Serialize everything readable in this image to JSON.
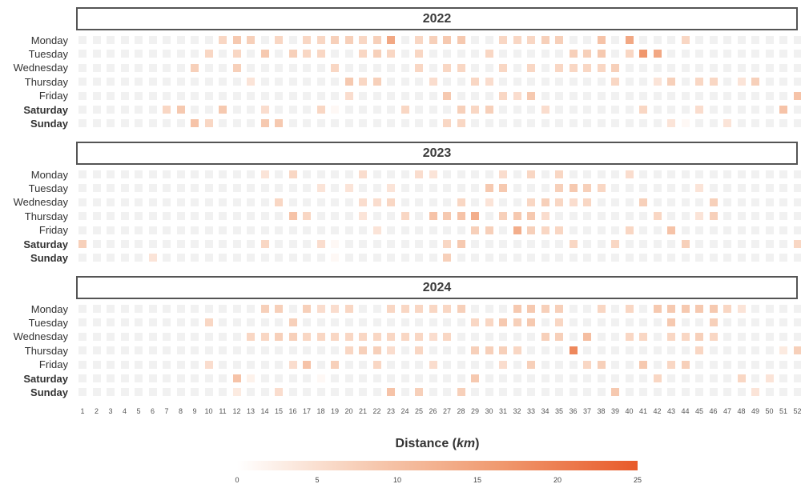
{
  "chart_data": {
    "type": "heatmap",
    "title": "",
    "x_axis": {
      "label": "",
      "ticks": [
        1,
        2,
        3,
        4,
        5,
        6,
        7,
        8,
        9,
        10,
        11,
        12,
        13,
        14,
        15,
        16,
        17,
        18,
        19,
        20,
        21,
        22,
        23,
        24,
        25,
        26,
        27,
        28,
        29,
        30,
        31,
        32,
        33,
        34,
        35,
        36,
        37,
        38,
        39,
        40,
        41,
        42,
        43,
        44,
        45,
        46,
        47,
        48,
        49,
        50,
        51,
        52
      ]
    },
    "y_axis": {
      "label": "",
      "ticks": [
        "Monday",
        "Tuesday",
        "Wednesday",
        "Thursday",
        "Friday",
        "Saturday",
        "Sunday"
      ],
      "bold_ticks": [
        "Saturday",
        "Sunday"
      ]
    },
    "facets": [
      {
        "year": "2022",
        "values": {
          "Monday": [
            0,
            0,
            0,
            0,
            0,
            0,
            0,
            0,
            0,
            0,
            6,
            8,
            7,
            0,
            6,
            0,
            6,
            6,
            7,
            7,
            6,
            7,
            14,
            0,
            6,
            7,
            8,
            8,
            0,
            0,
            6,
            6,
            6,
            7,
            7,
            0,
            0,
            9,
            0,
            14,
            0,
            0,
            0,
            6,
            0,
            0,
            0,
            0,
            0,
            0,
            0,
            0
          ],
          "Tuesday": [
            0,
            0,
            0,
            0,
            0,
            0,
            0,
            0,
            0,
            6,
            0,
            6,
            0,
            8,
            0,
            7,
            6,
            6,
            0,
            0,
            6,
            7,
            6,
            0,
            6,
            0,
            0,
            0,
            0,
            6,
            0,
            0,
            0,
            0,
            0,
            7,
            7,
            8,
            0,
            6,
            17,
            14,
            0,
            0,
            0,
            0,
            0,
            0,
            0,
            0,
            0,
            0
          ],
          "Wednesday": [
            0,
            0,
            0,
            0,
            0,
            0,
            0,
            0,
            7,
            0,
            0,
            7,
            0,
            0,
            0,
            0,
            0,
            0,
            6,
            0,
            0,
            0,
            0,
            0,
            6,
            0,
            6,
            6,
            0,
            0,
            6,
            0,
            6,
            0,
            6,
            6,
            6,
            6,
            7,
            0,
            0,
            0,
            0,
            0,
            0,
            0,
            0,
            0,
            0,
            0,
            0,
            0
          ],
          "Thursday": [
            0,
            0,
            0,
            0,
            0,
            0,
            0,
            0,
            0,
            0,
            0,
            0,
            4,
            0,
            0,
            0,
            0,
            0,
            0,
            8,
            6,
            7,
            0,
            0,
            0,
            5,
            0,
            0,
            6,
            5,
            0,
            0,
            0,
            0,
            0,
            0,
            0,
            0,
            6,
            0,
            0,
            4,
            7,
            0,
            6,
            6,
            0,
            4,
            7,
            0,
            0,
            0
          ],
          "Friday": [
            0,
            0,
            0,
            0,
            0,
            0,
            0,
            0,
            0,
            0,
            0,
            0,
            0,
            0,
            0,
            0,
            0,
            0,
            0,
            5,
            0,
            0,
            0,
            0,
            0,
            0,
            8,
            0,
            0,
            0,
            6,
            5,
            8,
            0,
            0,
            0,
            0,
            0,
            0,
            0,
            0,
            0,
            0,
            0,
            0,
            0,
            0,
            0,
            0,
            0,
            0,
            9
          ],
          "Saturday": [
            0,
            0,
            0,
            0,
            0,
            0,
            6,
            8,
            0,
            0,
            8,
            0,
            0,
            5,
            0,
            0,
            0,
            6,
            1,
            0,
            0,
            0,
            0,
            6,
            0,
            0,
            0,
            7,
            6,
            7,
            0,
            0,
            0,
            5,
            0,
            0,
            0,
            0,
            0,
            0,
            6,
            0,
            0,
            0,
            5,
            0,
            0,
            0,
            0,
            0,
            9,
            0
          ],
          "Sunday": [
            0,
            0,
            0,
            0,
            0,
            0,
            0,
            0,
            9,
            6,
            0,
            0,
            0,
            8,
            8,
            0,
            0,
            0,
            0,
            0,
            0,
            0,
            0,
            0,
            0,
            0,
            6,
            6,
            0,
            0,
            0,
            0,
            0,
            0,
            0,
            0,
            0,
            0,
            0,
            0,
            0,
            0,
            4,
            1,
            0,
            0,
            4,
            0,
            0,
            0,
            0,
            0
          ]
        }
      },
      {
        "year": "2023",
        "values": {
          "Monday": [
            0,
            0,
            0,
            0,
            0,
            0,
            0,
            0,
            0,
            0,
            0,
            0,
            0,
            4,
            0,
            6,
            0,
            0,
            0,
            0,
            5,
            0,
            0,
            0,
            5,
            4,
            0,
            0,
            0,
            0,
            5,
            0,
            6,
            0,
            6,
            0,
            0,
            0,
            0,
            5,
            0,
            0,
            0,
            0,
            0,
            0,
            0,
            0,
            0,
            0,
            0,
            0
          ],
          "Tuesday": [
            0,
            0,
            0,
            0,
            0,
            0,
            0,
            0,
            0,
            0,
            0,
            0,
            0,
            0,
            0,
            0,
            0,
            4,
            0,
            4,
            0,
            0,
            4,
            0,
            0,
            0,
            0,
            0,
            0,
            8,
            8,
            0,
            0,
            0,
            7,
            8,
            7,
            6,
            0,
            0,
            0,
            0,
            0,
            0,
            4,
            0,
            0,
            0,
            0,
            0,
            0,
            0
          ],
          "Wednesday": [
            0,
            0,
            0,
            0,
            0,
            0,
            0,
            0,
            0,
            0,
            0,
            0,
            0,
            0,
            6,
            0,
            0,
            0,
            0,
            0,
            5,
            5,
            6,
            0,
            0,
            0,
            0,
            6,
            0,
            4,
            0,
            0,
            6,
            7,
            6,
            5,
            6,
            0,
            0,
            0,
            7,
            0,
            0,
            0,
            0,
            7,
            0,
            0,
            0,
            0,
            0,
            0
          ],
          "Thursday": [
            0,
            0,
            0,
            0,
            0,
            0,
            0,
            0,
            0,
            0,
            0,
            0,
            0,
            0,
            0,
            9,
            6,
            0,
            0,
            0,
            4,
            0,
            0,
            6,
            0,
            9,
            8,
            9,
            13,
            0,
            7,
            8,
            8,
            5,
            0,
            0,
            0,
            0,
            0,
            0,
            0,
            6,
            0,
            0,
            4,
            7,
            0,
            0,
            0,
            0,
            0,
            0
          ],
          "Friday": [
            0,
            0,
            0,
            0,
            0,
            0,
            0,
            0,
            0,
            0,
            0,
            0,
            0,
            0,
            0,
            0,
            0,
            0,
            0,
            0,
            0,
            4,
            0,
            0,
            0,
            0,
            0,
            0,
            7,
            7,
            0,
            13,
            7,
            6,
            6,
            0,
            0,
            0,
            0,
            6,
            0,
            0,
            9,
            0,
            0,
            0,
            0,
            0,
            0,
            0,
            0,
            0
          ],
          "Saturday": [
            7,
            0,
            0,
            0,
            0,
            0,
            0,
            0,
            0,
            0,
            0,
            0,
            0,
            6,
            0,
            0,
            0,
            5,
            1,
            0,
            0,
            0,
            0,
            0,
            0,
            0,
            6,
            8,
            0,
            0,
            0,
            0,
            0,
            0,
            0,
            6,
            0,
            0,
            6,
            0,
            0,
            0,
            0,
            7,
            0,
            0,
            0,
            0,
            0,
            0,
            0,
            6
          ],
          "Sunday": [
            0,
            0,
            0,
            0,
            0,
            4,
            0,
            0,
            0,
            0,
            0,
            0,
            0,
            0,
            0,
            0,
            0,
            0,
            1,
            0,
            0,
            0,
            0,
            0,
            0,
            0,
            7,
            0,
            0,
            0,
            0,
            0,
            0,
            0,
            0,
            0,
            0,
            0,
            0,
            0,
            0,
            0,
            0,
            0,
            0,
            0,
            0,
            0,
            0,
            0,
            0,
            0
          ]
        }
      },
      {
        "year": "2024",
        "values": {
          "Monday": [
            0,
            0,
            0,
            0,
            0,
            0,
            0,
            0,
            0,
            0,
            0,
            0,
            0,
            7,
            7,
            0,
            7,
            5,
            5,
            6,
            0,
            0,
            6,
            6,
            6,
            6,
            6,
            7,
            0,
            0,
            0,
            8,
            8,
            7,
            7,
            0,
            0,
            6,
            0,
            6,
            0,
            8,
            8,
            8,
            8,
            8,
            6,
            4,
            0,
            0,
            0,
            0
          ],
          "Tuesday": [
            0,
            0,
            0,
            0,
            0,
            0,
            0,
            0,
            0,
            6,
            0,
            0,
            0,
            0,
            0,
            7,
            0,
            0,
            0,
            0,
            0,
            0,
            0,
            0,
            0,
            0,
            0,
            0,
            6,
            6,
            8,
            7,
            8,
            0,
            6,
            0,
            0,
            0,
            0,
            0,
            0,
            0,
            8,
            0,
            0,
            7,
            0,
            0,
            0,
            0,
            0,
            0
          ],
          "Wednesday": [
            0,
            0,
            0,
            0,
            0,
            0,
            0,
            0,
            0,
            0,
            0,
            0,
            6,
            6,
            7,
            7,
            6,
            6,
            6,
            6,
            6,
            6,
            6,
            6,
            6,
            5,
            6,
            0,
            0,
            0,
            0,
            0,
            0,
            7,
            7,
            0,
            10,
            0,
            0,
            6,
            6,
            0,
            6,
            6,
            7,
            6,
            0,
            0,
            0,
            0,
            0,
            0
          ],
          "Thursday": [
            0,
            0,
            0,
            0,
            0,
            0,
            0,
            0,
            0,
            0,
            0,
            0,
            0,
            0,
            0,
            0,
            0,
            0,
            0,
            6,
            7,
            7,
            5,
            0,
            6,
            0,
            0,
            0,
            7,
            7,
            7,
            6,
            0,
            0,
            0,
            19,
            0,
            0,
            0,
            0,
            0,
            0,
            0,
            0,
            6,
            0,
            0,
            0,
            0,
            0,
            3,
            7
          ],
          "Friday": [
            0,
            0,
            0,
            0,
            0,
            0,
            0,
            0,
            0,
            5,
            0,
            0,
            0,
            0,
            0,
            5,
            9,
            0,
            7,
            0,
            0,
            6,
            0,
            0,
            0,
            5,
            0,
            0,
            0,
            0,
            5,
            0,
            7,
            0,
            0,
            0,
            6,
            7,
            0,
            0,
            8,
            0,
            6,
            7,
            0,
            0,
            0,
            0,
            0,
            0,
            0,
            0
          ],
          "Saturday": [
            0,
            0,
            0,
            0,
            0,
            0,
            0,
            0,
            0,
            0,
            0,
            9,
            2,
            0,
            0,
            0,
            0,
            1,
            0,
            0,
            0,
            0,
            0,
            0,
            0,
            0,
            0,
            0,
            8,
            0,
            0,
            0,
            0,
            0,
            0,
            0,
            0,
            0,
            0,
            0,
            0,
            6,
            0,
            0,
            0,
            0,
            0,
            6,
            0,
            4,
            0,
            0
          ],
          "Sunday": [
            0,
            0,
            0,
            0,
            0,
            0,
            0,
            0,
            0,
            0,
            0,
            3,
            0,
            0,
            5,
            0,
            0,
            0,
            0,
            0,
            0,
            0,
            9,
            0,
            7,
            0,
            0,
            7,
            0,
            0,
            0,
            0,
            0,
            0,
            0,
            0,
            0,
            0,
            8,
            0,
            0,
            0,
            0,
            0,
            0,
            0,
            0,
            0,
            4,
            0,
            0,
            0
          ]
        }
      }
    ],
    "color_scale": {
      "title_main": "Distance",
      "title_unit": "km",
      "min": 0,
      "max": 25,
      "ticks": [
        0,
        5,
        10,
        15,
        20,
        25
      ],
      "colors": [
        "#ffffff",
        "#f6c7ad",
        "#f09a70",
        "#e85a2a"
      ],
      "empty_color": "#f1f1f1"
    },
    "grid": false,
    "legend_position": "bottom"
  }
}
